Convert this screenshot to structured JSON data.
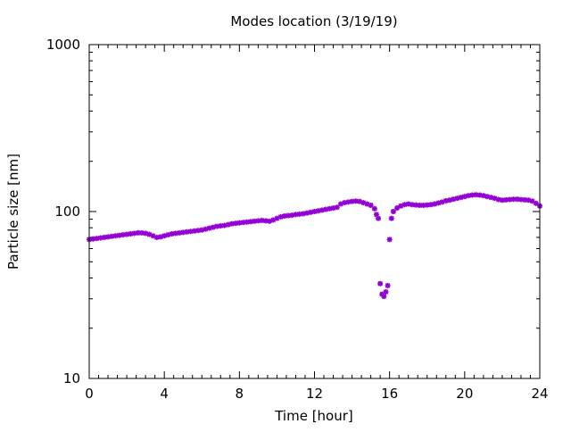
{
  "chart_data": {
    "type": "scatter",
    "title": "Modes location (3/19/19)",
    "xlabel": "Time [hour]",
    "ylabel": "Particle size [nm]",
    "xlim": [
      0,
      24
    ],
    "ylim": [
      10,
      1000
    ],
    "y_scale": "log",
    "x_ticks": [
      0,
      4,
      8,
      12,
      16,
      20,
      24
    ],
    "x_tick_labels": [
      "0",
      "4",
      "8",
      "12",
      "16",
      "20",
      "24"
    ],
    "y_ticks": [
      10,
      100,
      1000
    ],
    "y_tick_labels": [
      "10",
      "100",
      "1000"
    ],
    "grid": false,
    "legend": "none",
    "marker_color": "#9400d3",
    "series": [
      {
        "x": [
          0.0,
          0.2,
          0.4,
          0.6,
          0.8,
          1.0,
          1.2,
          1.4,
          1.6,
          1.8,
          2.0,
          2.2,
          2.4,
          2.6,
          2.8,
          3.0,
          3.2,
          3.4,
          3.6,
          3.8,
          4.0,
          4.2,
          4.4,
          4.6,
          4.8,
          5.0,
          5.2,
          5.4,
          5.6,
          5.8,
          6.0,
          6.2,
          6.4,
          6.6,
          6.8,
          7.0,
          7.2,
          7.4,
          7.6,
          7.8,
          8.0,
          8.2,
          8.4,
          8.6,
          8.8,
          9.0,
          9.2,
          9.4,
          9.6,
          9.8,
          10.0,
          10.2,
          10.4,
          10.6,
          10.8,
          11.0,
          11.2,
          11.4,
          11.6,
          11.8,
          12.0,
          12.2,
          12.4,
          12.6,
          12.8,
          13.0,
          13.2,
          13.4,
          13.6,
          13.8,
          14.0,
          14.2,
          14.4,
          14.6,
          14.8,
          15.0,
          15.2,
          15.3,
          15.4,
          15.5,
          15.6,
          15.7,
          15.8,
          15.9,
          16.0,
          16.1,
          16.2,
          16.4,
          16.6,
          16.8,
          17.0,
          17.2,
          17.4,
          17.6,
          17.8,
          18.0,
          18.2,
          18.4,
          18.6,
          18.8,
          19.0,
          19.2,
          19.4,
          19.6,
          19.8,
          20.0,
          20.2,
          20.4,
          20.6,
          20.8,
          21.0,
          21.2,
          21.4,
          21.6,
          21.8,
          22.0,
          22.2,
          22.4,
          22.6,
          22.8,
          23.0,
          23.2,
          23.4,
          23.6,
          23.8,
          24.0
        ],
        "y": [
          68,
          68.5,
          69,
          69.5,
          70,
          70.5,
          71,
          71.5,
          72,
          72.5,
          73,
          73.5,
          74,
          74.5,
          74.5,
          74,
          73,
          71.5,
          70,
          70.5,
          71.5,
          72.5,
          73.5,
          74,
          74.5,
          75,
          75.5,
          76,
          76.5,
          77,
          77.5,
          78.5,
          79.5,
          80.5,
          81.5,
          82,
          82.5,
          83.5,
          84.5,
          85,
          85.5,
          86,
          86.5,
          87,
          87.5,
          88,
          88.5,
          88,
          87.5,
          89,
          91,
          93,
          94,
          94.5,
          95,
          96,
          96.5,
          97,
          98,
          99,
          100,
          101,
          102,
          103,
          104,
          105,
          106,
          111,
          113,
          114,
          115,
          115.5,
          115,
          113,
          111,
          109,
          104,
          96,
          91,
          37,
          32,
          31,
          33,
          36,
          68,
          91,
          100,
          105,
          108,
          110,
          111,
          110,
          109.5,
          109,
          109,
          109.5,
          110,
          111,
          112.5,
          114,
          116,
          117,
          118.5,
          120,
          121.5,
          123,
          124.5,
          125.5,
          126,
          125.5,
          124.5,
          123,
          121.5,
          120,
          118,
          117,
          117.5,
          118,
          118.5,
          118.5,
          118,
          117.5,
          117,
          115.5,
          112,
          108
        ]
      }
    ]
  }
}
